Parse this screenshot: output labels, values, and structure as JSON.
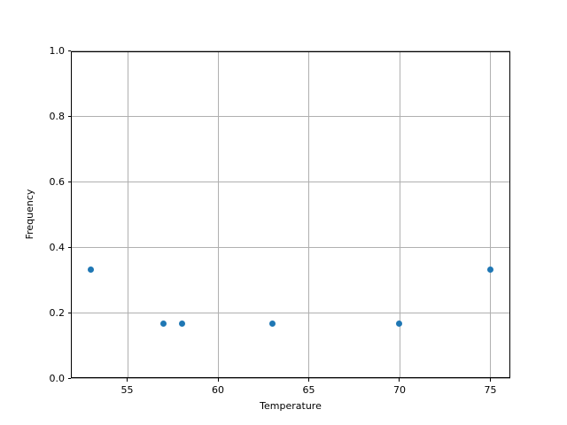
{
  "figure": {
    "background": "#ffffff"
  },
  "chart_data": {
    "type": "scatter",
    "title": "",
    "xlabel": "Temperature",
    "ylabel": "Frequency",
    "points": [
      {
        "x": 53,
        "y": 0.333
      },
      {
        "x": 57,
        "y": 0.167
      },
      {
        "x": 58,
        "y": 0.167
      },
      {
        "x": 63,
        "y": 0.167
      },
      {
        "x": 70,
        "y": 0.167
      },
      {
        "x": 75,
        "y": 0.333
      }
    ],
    "xlim": [
      51.9,
      76.1
    ],
    "ylim": [
      0.0,
      1.0
    ],
    "xticks": [
      {
        "value": 55,
        "label": "55"
      },
      {
        "value": 60,
        "label": "60"
      },
      {
        "value": 65,
        "label": "65"
      },
      {
        "value": 70,
        "label": "70"
      },
      {
        "value": 75,
        "label": "75"
      }
    ],
    "yticks": [
      {
        "value": 0.0,
        "label": "0.0"
      },
      {
        "value": 0.2,
        "label": "0.2"
      },
      {
        "value": 0.4,
        "label": "0.4"
      },
      {
        "value": 0.6,
        "label": "0.6"
      },
      {
        "value": 0.8,
        "label": "0.8"
      },
      {
        "value": 1.0,
        "label": "1.0"
      }
    ],
    "grid": true,
    "legend": false,
    "marker_color": "#1f77b4",
    "grid_color": "#b0b0b0",
    "axis_color": "#000000",
    "text_color": "#000000"
  }
}
